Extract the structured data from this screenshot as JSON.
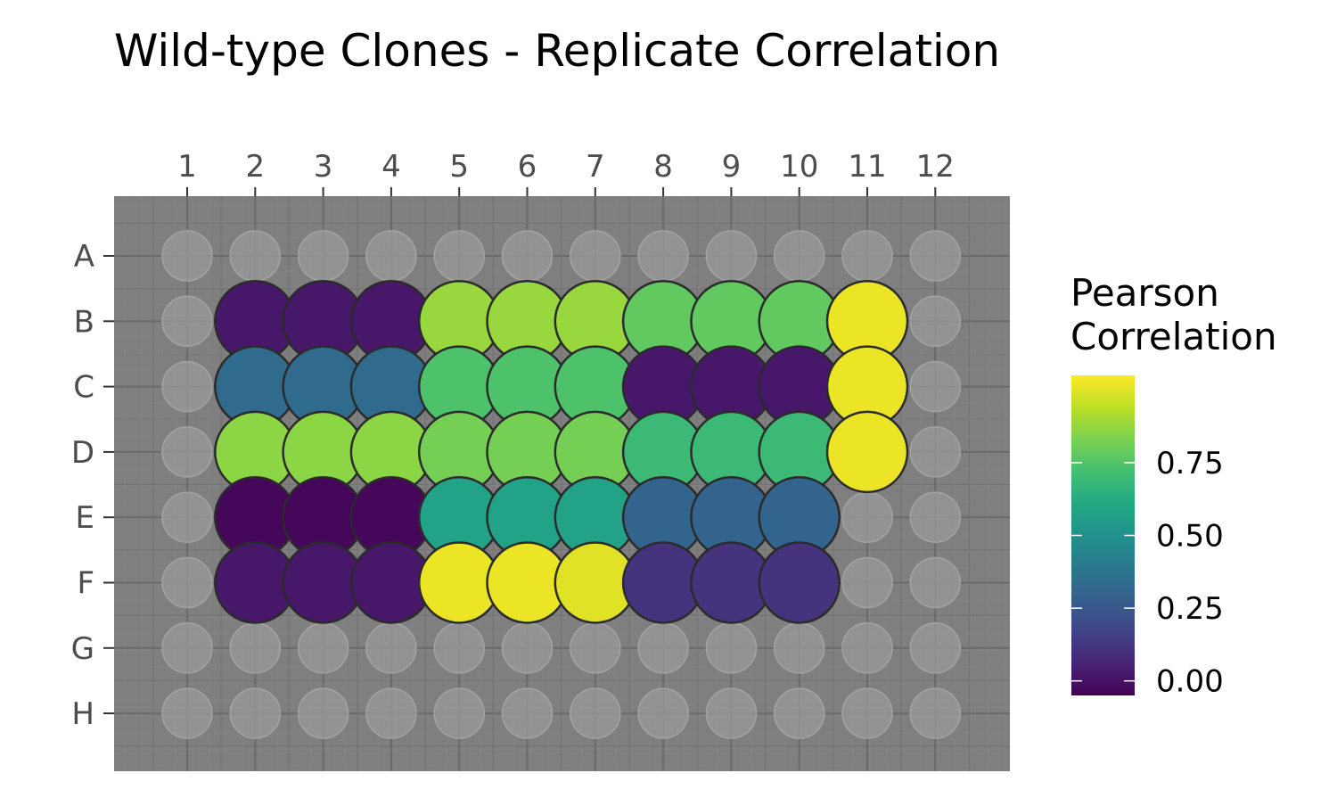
{
  "chart_data": {
    "type": "heatmap",
    "title": "Wild-type Clones - Replicate Correlation",
    "columns": [
      "1",
      "2",
      "3",
      "4",
      "5",
      "6",
      "7",
      "8",
      "9",
      "10",
      "11",
      "12"
    ],
    "rows": [
      "A",
      "B",
      "C",
      "D",
      "E",
      "F",
      "G",
      "H"
    ],
    "legend": {
      "title_lines": [
        "Pearson",
        "Correlation"
      ],
      "ticks": [
        0.0,
        0.25,
        0.5,
        0.75
      ],
      "tick_labels": [
        "0.00",
        "0.25",
        "0.50",
        "0.75"
      ],
      "range": [
        -0.05,
        1.05
      ],
      "placement": "right"
    },
    "empty_well_color": "#999999",
    "panel_background": "#7f7f7f",
    "grid": true,
    "wells": [
      {
        "row": "B",
        "col": "2",
        "value": 0.02
      },
      {
        "row": "B",
        "col": "3",
        "value": 0.02
      },
      {
        "row": "B",
        "col": "4",
        "value": 0.02
      },
      {
        "row": "B",
        "col": "5",
        "value": 0.88
      },
      {
        "row": "B",
        "col": "6",
        "value": 0.88
      },
      {
        "row": "B",
        "col": "7",
        "value": 0.88
      },
      {
        "row": "B",
        "col": "8",
        "value": 0.78
      },
      {
        "row": "B",
        "col": "9",
        "value": 0.78
      },
      {
        "row": "B",
        "col": "10",
        "value": 0.78
      },
      {
        "row": "B",
        "col": "11",
        "value": 1.02
      },
      {
        "row": "C",
        "col": "2",
        "value": 0.33
      },
      {
        "row": "C",
        "col": "3",
        "value": 0.33
      },
      {
        "row": "C",
        "col": "4",
        "value": 0.33
      },
      {
        "row": "C",
        "col": "5",
        "value": 0.74
      },
      {
        "row": "C",
        "col": "6",
        "value": 0.74
      },
      {
        "row": "C",
        "col": "7",
        "value": 0.74
      },
      {
        "row": "C",
        "col": "8",
        "value": 0.02
      },
      {
        "row": "C",
        "col": "9",
        "value": 0.02
      },
      {
        "row": "C",
        "col": "10",
        "value": 0.02
      },
      {
        "row": "C",
        "col": "11",
        "value": 1.02
      },
      {
        "row": "D",
        "col": "2",
        "value": 0.86
      },
      {
        "row": "D",
        "col": "3",
        "value": 0.86
      },
      {
        "row": "D",
        "col": "4",
        "value": 0.86
      },
      {
        "row": "D",
        "col": "5",
        "value": 0.82
      },
      {
        "row": "D",
        "col": "6",
        "value": 0.82
      },
      {
        "row": "D",
        "col": "7",
        "value": 0.82
      },
      {
        "row": "D",
        "col": "8",
        "value": 0.69
      },
      {
        "row": "D",
        "col": "9",
        "value": 0.69
      },
      {
        "row": "D",
        "col": "10",
        "value": 0.69
      },
      {
        "row": "D",
        "col": "11",
        "value": 1.02
      },
      {
        "row": "E",
        "col": "2",
        "value": -0.03
      },
      {
        "row": "E",
        "col": "3",
        "value": -0.03
      },
      {
        "row": "E",
        "col": "4",
        "value": -0.03
      },
      {
        "row": "E",
        "col": "5",
        "value": 0.58
      },
      {
        "row": "E",
        "col": "6",
        "value": 0.58
      },
      {
        "row": "E",
        "col": "7",
        "value": 0.58
      },
      {
        "row": "E",
        "col": "8",
        "value": 0.3
      },
      {
        "row": "E",
        "col": "9",
        "value": 0.3
      },
      {
        "row": "E",
        "col": "10",
        "value": 0.3
      },
      {
        "row": "F",
        "col": "2",
        "value": 0.02
      },
      {
        "row": "F",
        "col": "3",
        "value": 0.02
      },
      {
        "row": "F",
        "col": "4",
        "value": 0.02
      },
      {
        "row": "F",
        "col": "5",
        "value": 1.02
      },
      {
        "row": "F",
        "col": "6",
        "value": 1.02
      },
      {
        "row": "F",
        "col": "7",
        "value": 1.0
      },
      {
        "row": "F",
        "col": "8",
        "value": 0.11
      },
      {
        "row": "F",
        "col": "9",
        "value": 0.11
      },
      {
        "row": "F",
        "col": "10",
        "value": 0.11
      }
    ]
  }
}
